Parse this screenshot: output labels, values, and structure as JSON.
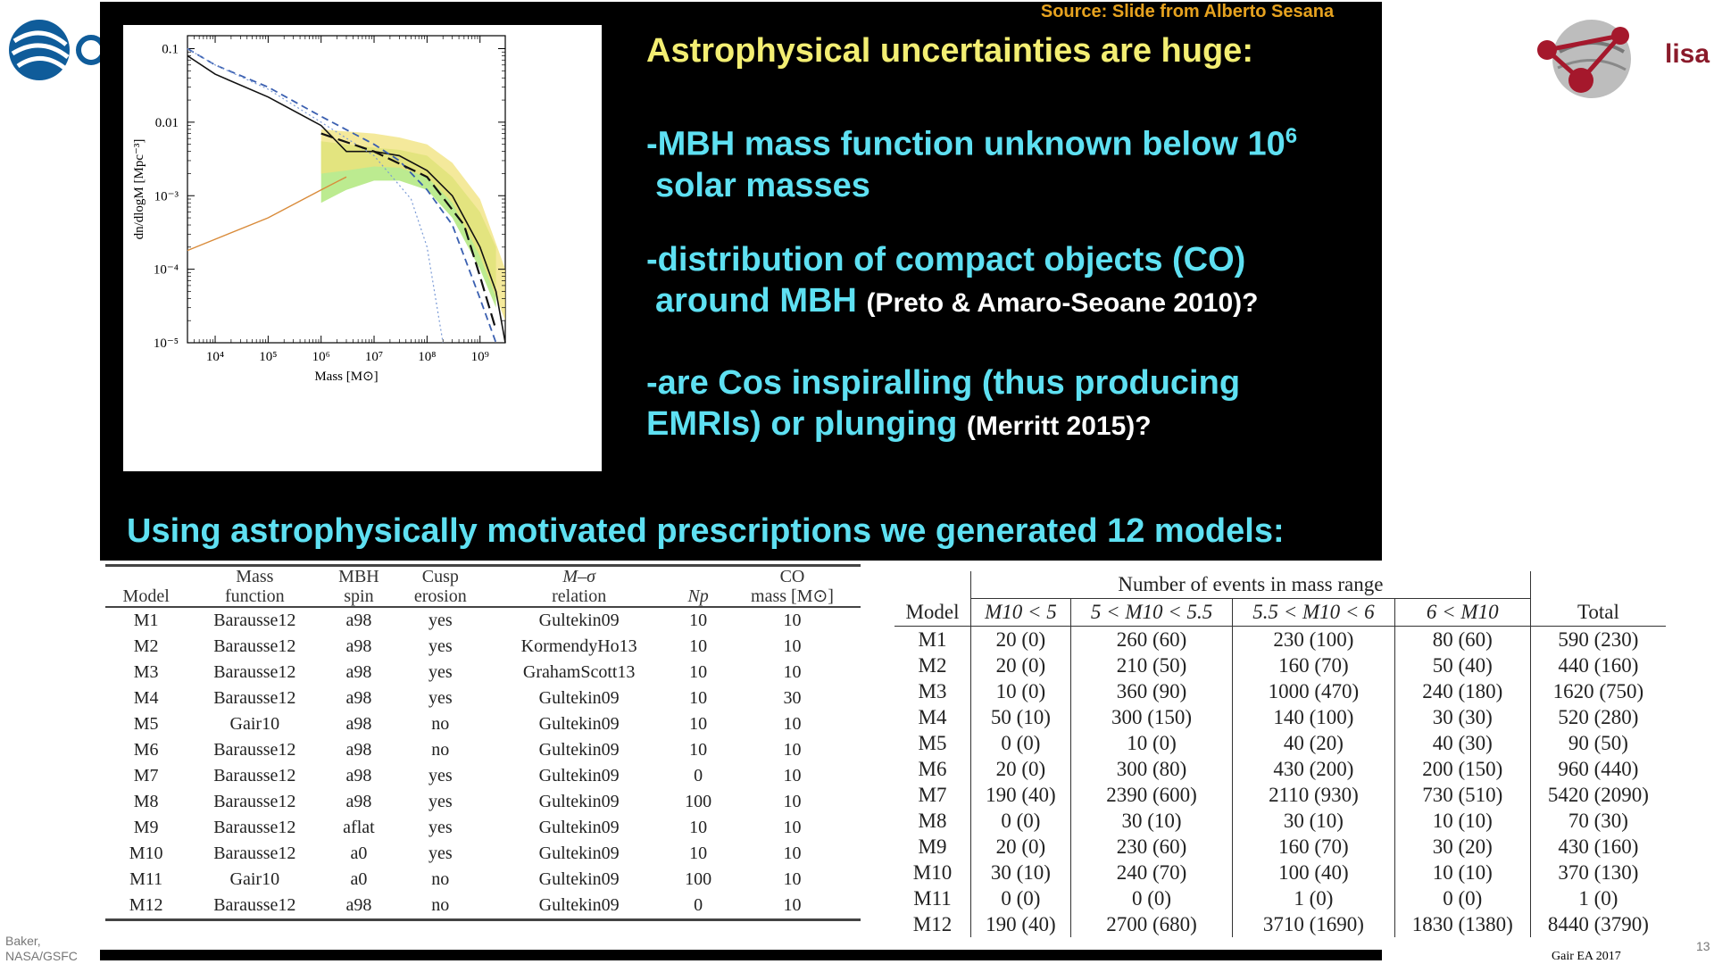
{
  "source_note": "Source: Slide from Alberto Sesana",
  "headline": "Astrophysical uncertainties are huge:",
  "bullets": {
    "b1_main": "-MBH mass function unknown below 10",
    "b1_sup": "6",
    "b1_cont": "solar masses",
    "b2_main": "-distribution of compact objects (CO)",
    "b2_cont": "around MBH",
    "b2_cite": "(Preto & Amaro-Seoane 2010)?",
    "b3_main": "-are Cos inspiralling (thus producing",
    "b3_cont": "EMRIs) or plunging",
    "b3_cite": "(Merritt 2015)?"
  },
  "footer_line": "Using astrophysically motivated prescriptions we generated 12 models:",
  "lisa_label": "lisa",
  "credit_line1": "Baker,",
  "credit_line2": "NASA/GSFC",
  "page_number": "13",
  "citation": "Gair EA 2017",
  "chart_data": {
    "type": "line",
    "xlabel": "Mass [M⊙]",
    "ylabel": "dn/dlogM [Mpc⁻³]",
    "xscale": "log",
    "yscale": "log",
    "xlim": [
      3000,
      3000000000
    ],
    "ylim": [
      1e-05,
      0.15
    ],
    "x_ticks": [
      "10⁴",
      "10⁵",
      "10⁶",
      "10⁷",
      "10⁸",
      "10⁹"
    ],
    "y_ticks": [
      "0.1",
      "0.01",
      "10⁻³",
      "10⁻⁴",
      "10⁻⁵"
    ],
    "series": [
      {
        "style": "solid-black",
        "x": [
          3000,
          10000,
          100000,
          1000000,
          3000000,
          10000000,
          30000000,
          100000000,
          300000000,
          1000000000,
          2000000000,
          3000000000
        ],
        "y": [
          0.08,
          0.045,
          0.022,
          0.009,
          0.004,
          0.004,
          0.0035,
          0.0022,
          0.001,
          0.0002,
          5e-05,
          1e-05
        ]
      },
      {
        "style": "dashed-blue",
        "x": [
          3000,
          10000,
          100000,
          1000000,
          10000000,
          30000000,
          100000000,
          300000000,
          1000000000,
          2000000000
        ],
        "y": [
          0.1,
          0.06,
          0.03,
          0.012,
          0.005,
          0.003,
          0.0012,
          0.0004,
          4e-05,
          1e-05
        ]
      },
      {
        "style": "dotted-blue",
        "x": [
          3000,
          10000,
          100000,
          1000000,
          10000000,
          50000000,
          100000000,
          200000000
        ],
        "y": [
          0.1,
          0.06,
          0.028,
          0.01,
          0.0035,
          0.0009,
          0.0002,
          1e-05
        ]
      },
      {
        "style": "long-dash-black",
        "x": [
          1000000,
          10000000,
          100000000,
          500000000,
          1000000000,
          2000000000
        ],
        "y": [
          0.007,
          0.004,
          0.0018,
          0.0004,
          8e-05,
          1.5e-05
        ]
      },
      {
        "style": "solid-orange",
        "x": [
          3000,
          100000,
          1000000,
          3000000
        ],
        "y": [
          0.00018,
          0.0005,
          0.0012,
          0.0018
        ]
      }
    ],
    "bands": [
      {
        "color": "#a6e46b",
        "x": [
          1000000,
          3000000,
          10000000,
          30000000,
          100000000,
          300000000,
          1000000000,
          2000000000
        ],
        "lower": [
          0.0008,
          0.0012,
          0.0016,
          0.0016,
          0.0012,
          0.0005,
          0.0001,
          3e-05
        ],
        "upper": [
          0.0055,
          0.005,
          0.0045,
          0.0042,
          0.0035,
          0.0018,
          0.0006,
          0.0002
        ]
      },
      {
        "color": "#f0e27a",
        "x": [
          1000000,
          3000000,
          10000000,
          30000000,
          100000000,
          300000000,
          1000000000,
          3000000000
        ],
        "lower": [
          0.002,
          0.0022,
          0.0025,
          0.0024,
          0.0018,
          0.0008,
          0.00015,
          2e-05
        ],
        "upper": [
          0.008,
          0.0075,
          0.007,
          0.0062,
          0.005,
          0.0028,
          0.0009,
          0.0001
        ]
      }
    ]
  },
  "left_table": {
    "headers": [
      [
        "Model",
        ""
      ],
      [
        "Mass",
        "function"
      ],
      [
        "MBH",
        "spin"
      ],
      [
        "Cusp",
        "erosion"
      ],
      [
        "M–σ",
        "relation"
      ],
      [
        "Np",
        ""
      ],
      [
        "CO",
        "mass [M⊙]"
      ]
    ],
    "rows": [
      [
        "M1",
        "Barausse12",
        "a98",
        "yes",
        "Gultekin09",
        "10",
        "10"
      ],
      [
        "M2",
        "Barausse12",
        "a98",
        "yes",
        "KormendyHo13",
        "10",
        "10"
      ],
      [
        "M3",
        "Barausse12",
        "a98",
        "yes",
        "GrahamScott13",
        "10",
        "10"
      ],
      [
        "M4",
        "Barausse12",
        "a98",
        "yes",
        "Gultekin09",
        "10",
        "30"
      ],
      [
        "M5",
        "Gair10",
        "a98",
        "no",
        "Gultekin09",
        "10",
        "10"
      ],
      [
        "M6",
        "Barausse12",
        "a98",
        "no",
        "Gultekin09",
        "10",
        "10"
      ],
      [
        "M7",
        "Barausse12",
        "a98",
        "yes",
        "Gultekin09",
        "0",
        "10"
      ],
      [
        "M8",
        "Barausse12",
        "a98",
        "yes",
        "Gultekin09",
        "100",
        "10"
      ],
      [
        "M9",
        "Barausse12",
        "aflat",
        "yes",
        "Gultekin09",
        "10",
        "10"
      ],
      [
        "M10",
        "Barausse12",
        "a0",
        "yes",
        "Gultekin09",
        "10",
        "10"
      ],
      [
        "M11",
        "Gair10",
        "a0",
        "no",
        "Gultekin09",
        "100",
        "10"
      ],
      [
        "M12",
        "Barausse12",
        "a98",
        "no",
        "Gultekin09",
        "0",
        "10"
      ]
    ]
  },
  "right_table": {
    "group_header": "Number of events in mass range",
    "headers": [
      "Model",
      "M10 < 5",
      "5 < M10 < 5.5",
      "5.5 < M10 < 6",
      "6 < M10",
      "Total"
    ],
    "rows": [
      [
        "M1",
        "20 (0)",
        "260 (60)",
        "230 (100)",
        "80 (60)",
        "590 (230)"
      ],
      [
        "M2",
        "20 (0)",
        "210 (50)",
        "160 (70)",
        "50 (40)",
        "440 (160)"
      ],
      [
        "M3",
        "10 (0)",
        "360 (90)",
        "1000 (470)",
        "240 (180)",
        "1620 (750)"
      ],
      [
        "M4",
        "50 (10)",
        "300 (150)",
        "140 (100)",
        "30 (30)",
        "520 (280)"
      ],
      [
        "M5",
        "0 (0)",
        "10 (0)",
        "40 (20)",
        "40 (30)",
        "90 (50)"
      ],
      [
        "M6",
        "20 (0)",
        "300 (80)",
        "430 (200)",
        "200 (150)",
        "960 (440)"
      ],
      [
        "M7",
        "190 (40)",
        "2390 (600)",
        "2110 (930)",
        "730 (510)",
        "5420 (2090)"
      ],
      [
        "M8",
        "0 (0)",
        "30 (10)",
        "30 (10)",
        "10 (10)",
        "70 (30)"
      ],
      [
        "M9",
        "20 (0)",
        "230 (60)",
        "160 (70)",
        "30 (20)",
        "430 (160)"
      ],
      [
        "M10",
        "30 (10)",
        "240 (70)",
        "100 (40)",
        "10 (10)",
        "370 (130)"
      ],
      [
        "M11",
        "0 (0)",
        "0 (0)",
        "1 (0)",
        "0 (0)",
        "1 (0)"
      ],
      [
        "M12",
        "190 (40)",
        "2700 (680)",
        "3710 (1690)",
        "1830 (1380)",
        "8440 (3790)"
      ]
    ]
  }
}
